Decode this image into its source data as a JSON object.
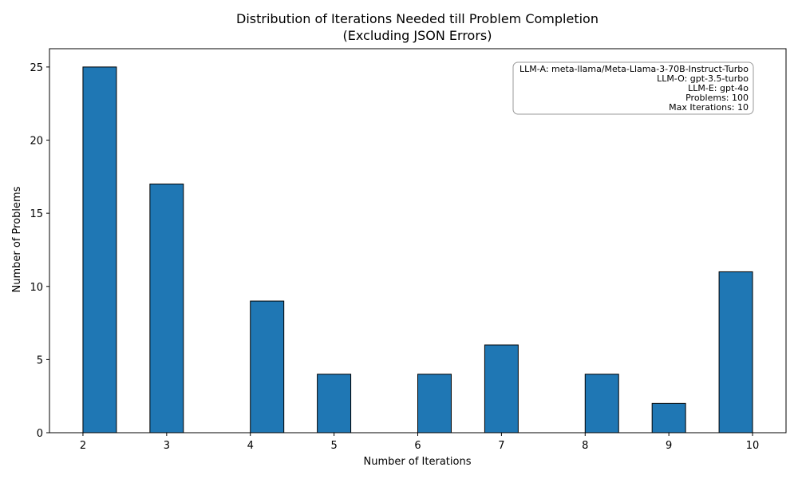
{
  "chart_data": {
    "type": "bar",
    "title": "Distribution of Iterations Needed till Problem Completion",
    "subtitle": "(Excluding JSON Errors)",
    "xlabel": "Number of Iterations",
    "ylabel": "Number of Problems",
    "xlim": [
      1.6,
      10.4
    ],
    "ylim": [
      0,
      26.25
    ],
    "x_ticks": [
      2,
      3,
      4,
      5,
      6,
      7,
      8,
      9,
      10
    ],
    "y_ticks": [
      0,
      5,
      10,
      15,
      20,
      25
    ],
    "bin_width": 0.4,
    "bins": [
      {
        "start": 2.0,
        "value": 25
      },
      {
        "start": 2.8,
        "value": 17
      },
      {
        "start": 4.0,
        "value": 9
      },
      {
        "start": 4.8,
        "value": 4
      },
      {
        "start": 6.0,
        "value": 4
      },
      {
        "start": 6.8,
        "value": 6
      },
      {
        "start": 8.0,
        "value": 4
      },
      {
        "start": 8.8,
        "value": 2
      },
      {
        "start": 9.6,
        "value": 11
      }
    ],
    "bar_color": "#1f77b4",
    "bar_edge_color": "#000000",
    "grid": false,
    "annotation_placement": "top-right",
    "annotation_lines": [
      "LLM-A: meta-llama/Meta-Llama-3-70B-Instruct-Turbo",
      "LLM-O: gpt-3.5-turbo",
      "LLM-E: gpt-4o",
      "Problems: 100",
      "Max Iterations: 10"
    ]
  }
}
